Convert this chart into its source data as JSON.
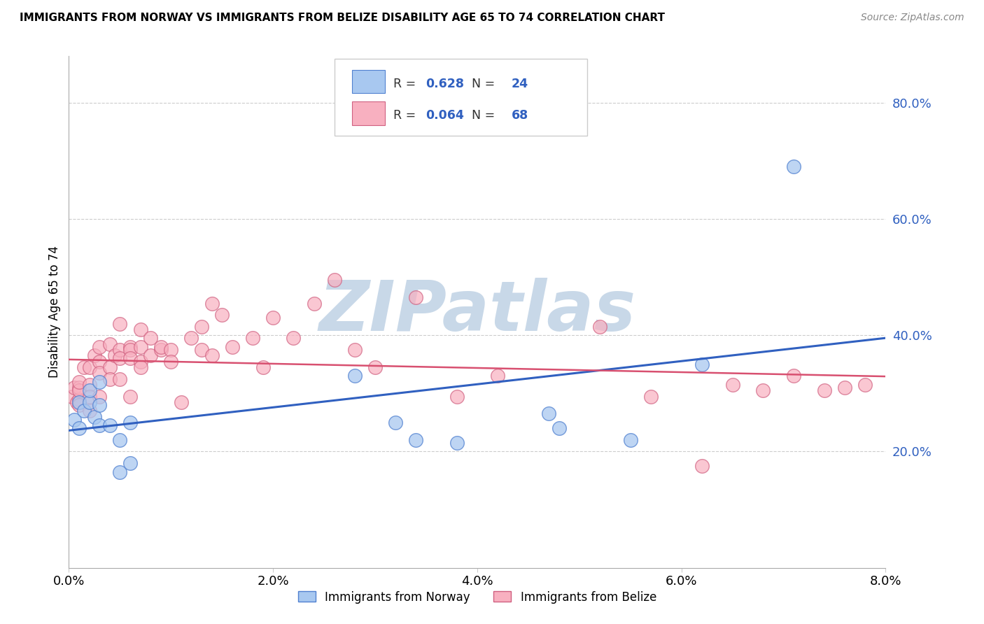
{
  "title": "IMMIGRANTS FROM NORWAY VS IMMIGRANTS FROM BELIZE DISABILITY AGE 65 TO 74 CORRELATION CHART",
  "source": "Source: ZipAtlas.com",
  "xlabel_norway": "Immigrants from Norway",
  "xlabel_belize": "Immigrants from Belize",
  "ylabel": "Disability Age 65 to 74",
  "xlim": [
    0.0,
    0.08
  ],
  "ylim": [
    0.0,
    0.88
  ],
  "yticks": [
    0.2,
    0.4,
    0.6,
    0.8
  ],
  "xticks": [
    0.0,
    0.02,
    0.04,
    0.06,
    0.08
  ],
  "norway_R": 0.628,
  "norway_N": 24,
  "belize_R": 0.064,
  "belize_N": 68,
  "norway_color": "#A8C8F0",
  "belize_color": "#F8B0C0",
  "norway_line_color": "#3060C0",
  "belize_line_color": "#D85070",
  "norway_edge_color": "#5080D0",
  "belize_edge_color": "#D06080",
  "watermark_color": "#C8D8E8",
  "norway_scatter_x": [
    0.0005,
    0.001,
    0.001,
    0.0015,
    0.002,
    0.002,
    0.0025,
    0.003,
    0.003,
    0.003,
    0.004,
    0.005,
    0.005,
    0.006,
    0.006,
    0.028,
    0.032,
    0.034,
    0.038,
    0.047,
    0.048,
    0.055,
    0.062,
    0.071
  ],
  "norway_scatter_y": [
    0.255,
    0.285,
    0.24,
    0.27,
    0.285,
    0.305,
    0.26,
    0.245,
    0.28,
    0.32,
    0.245,
    0.22,
    0.165,
    0.25,
    0.18,
    0.33,
    0.25,
    0.22,
    0.215,
    0.265,
    0.24,
    0.22,
    0.35,
    0.69
  ],
  "belize_scatter_x": [
    0.0003,
    0.0005,
    0.0008,
    0.001,
    0.001,
    0.001,
    0.001,
    0.001,
    0.0015,
    0.002,
    0.002,
    0.002,
    0.002,
    0.0025,
    0.003,
    0.003,
    0.003,
    0.003,
    0.004,
    0.004,
    0.004,
    0.0045,
    0.005,
    0.005,
    0.005,
    0.005,
    0.006,
    0.006,
    0.006,
    0.006,
    0.007,
    0.007,
    0.007,
    0.007,
    0.008,
    0.008,
    0.009,
    0.009,
    0.01,
    0.01,
    0.011,
    0.012,
    0.013,
    0.013,
    0.014,
    0.014,
    0.015,
    0.016,
    0.018,
    0.019,
    0.02,
    0.022,
    0.024,
    0.026,
    0.028,
    0.03,
    0.034,
    0.038,
    0.042,
    0.052,
    0.057,
    0.062,
    0.065,
    0.068,
    0.071,
    0.074,
    0.076,
    0.078
  ],
  "belize_scatter_y": [
    0.295,
    0.31,
    0.285,
    0.29,
    0.31,
    0.305,
    0.28,
    0.32,
    0.345,
    0.345,
    0.315,
    0.295,
    0.27,
    0.365,
    0.38,
    0.355,
    0.335,
    0.295,
    0.345,
    0.325,
    0.385,
    0.365,
    0.42,
    0.375,
    0.36,
    0.325,
    0.38,
    0.375,
    0.36,
    0.295,
    0.355,
    0.41,
    0.38,
    0.345,
    0.365,
    0.395,
    0.375,
    0.38,
    0.375,
    0.355,
    0.285,
    0.395,
    0.415,
    0.375,
    0.455,
    0.365,
    0.435,
    0.38,
    0.395,
    0.345,
    0.43,
    0.395,
    0.455,
    0.495,
    0.375,
    0.345,
    0.465,
    0.295,
    0.33,
    0.415,
    0.295,
    0.175,
    0.315,
    0.305,
    0.33,
    0.305,
    0.31,
    0.315
  ]
}
